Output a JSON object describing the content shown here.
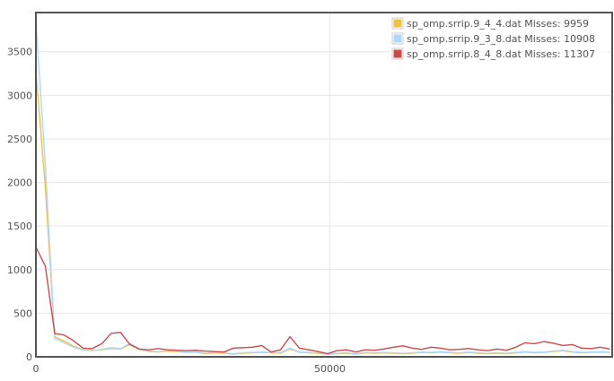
{
  "chart_data": {
    "type": "line",
    "title": "",
    "xlabel": "",
    "ylabel": "",
    "xlim": [
      0,
      98000
    ],
    "ylim": [
      0,
      3950
    ],
    "grid": true,
    "legend_position": "top-right",
    "x_ticks": [
      0,
      50000
    ],
    "y_ticks": [
      0,
      500,
      1000,
      1500,
      2000,
      2500,
      3000,
      3500
    ],
    "x": [
      0,
      1600,
      3200,
      4800,
      6400,
      8000,
      9600,
      11200,
      12800,
      14400,
      16000,
      17600,
      19200,
      20800,
      22400,
      24000,
      25600,
      27200,
      28800,
      30400,
      32000,
      33600,
      35200,
      36800,
      38400,
      40000,
      41600,
      43200,
      44800,
      46400,
      48000,
      49600,
      51200,
      52800,
      54400,
      56000,
      57600,
      59200,
      60800,
      62400,
      64000,
      65600,
      67200,
      68800,
      70400,
      72000,
      73600,
      75200,
      76800,
      78400,
      80000,
      81600,
      83200,
      84800,
      86400,
      88000,
      89600,
      91200,
      92800,
      94400,
      96000,
      97600
    ],
    "series": [
      {
        "name": "sp_omp.srrip.9_4_4.dat Misses: 9959",
        "color": "#edc240",
        "values": [
          3280,
          1950,
          230,
          180,
          120,
          80,
          75,
          80,
          95,
          90,
          140,
          85,
          60,
          55,
          65,
          60,
          50,
          55,
          35,
          45,
          40,
          30,
          40,
          45,
          50,
          45,
          40,
          90,
          50,
          45,
          40,
          30,
          35,
          40,
          30,
          45,
          40,
          45,
          40,
          35,
          40,
          50,
          45,
          55,
          45,
          40,
          50,
          40,
          35,
          40,
          35,
          45,
          55,
          45,
          50,
          60,
          70,
          55,
          45,
          50,
          55,
          50
        ]
      },
      {
        "name": "sp_omp.srrip.9_3_8.dat Misses: 10908",
        "color": "#afd8f8",
        "values": [
          3850,
          2200,
          210,
          160,
          110,
          75,
          70,
          85,
          105,
          95,
          155,
          90,
          65,
          60,
          70,
          65,
          55,
          60,
          40,
          50,
          45,
          35,
          45,
          50,
          55,
          50,
          45,
          100,
          55,
          50,
          45,
          35,
          40,
          45,
          35,
          50,
          45,
          50,
          45,
          40,
          45,
          55,
          50,
          60,
          50,
          45,
          55,
          45,
          40,
          45,
          40,
          50,
          60,
          50,
          55,
          65,
          75,
          60,
          50,
          55,
          60,
          55
        ]
      },
      {
        "name": "sp_omp.srrip.8_4_8.dat Misses: 11307",
        "color": "#cb4b4b",
        "values": [
          1260,
          1040,
          265,
          250,
          185,
          100,
          95,
          150,
          270,
          280,
          140,
          90,
          80,
          95,
          80,
          75,
          70,
          75,
          65,
          60,
          55,
          100,
          105,
          110,
          130,
          55,
          80,
          230,
          100,
          80,
          60,
          35,
          70,
          80,
          55,
          80,
          75,
          90,
          110,
          125,
          100,
          85,
          110,
          100,
          80,
          85,
          95,
          80,
          70,
          90,
          75,
          110,
          160,
          150,
          175,
          155,
          130,
          140,
          100,
          95,
          110,
          90
        ]
      }
    ]
  }
}
